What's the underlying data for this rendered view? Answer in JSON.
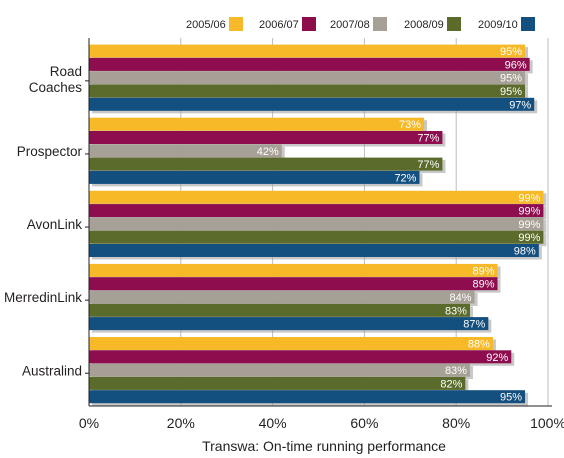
{
  "chart_data": {
    "type": "bar",
    "orientation": "horizontal",
    "categories": [
      "Road Coaches",
      "Prospector",
      "AvonLink",
      "MerredinLink",
      "Australind"
    ],
    "series": [
      {
        "name": "2005/06",
        "color": "#f7b928",
        "values": [
          95,
          73,
          99,
          89,
          88
        ]
      },
      {
        "name": "2006/07",
        "color": "#8e0d4e",
        "values": [
          96,
          77,
          99,
          89,
          92
        ]
      },
      {
        "name": "2007/08",
        "color": "#a7a096",
        "values": [
          95,
          42,
          99,
          84,
          83
        ]
      },
      {
        "name": "2008/09",
        "color": "#5a6b2b",
        "values": [
          95,
          77,
          99,
          83,
          82
        ]
      },
      {
        "name": "2009/10",
        "color": "#134f7f",
        "values": [
          97,
          72,
          98,
          87,
          95
        ]
      }
    ],
    "value_suffix": "%",
    "xticks": [
      "0%",
      "20%",
      "40%",
      "60%",
      "80%",
      "100%"
    ],
    "xlim": [
      0,
      100
    ],
    "xlabel": "Transwa: On-time running performance",
    "ylabel": "",
    "title": "",
    "legend_position": "top-right",
    "grid": "vertical"
  }
}
